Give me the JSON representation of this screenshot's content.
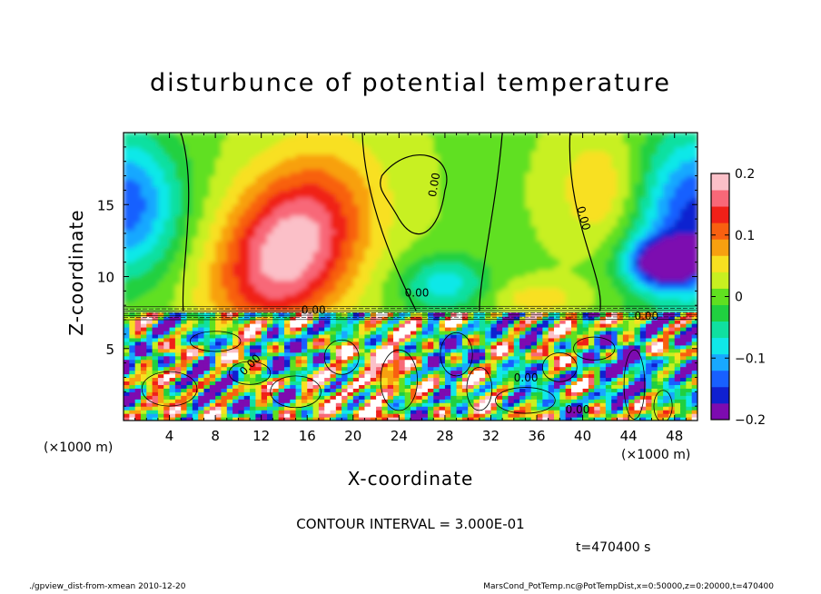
{
  "chart_data": {
    "type": "heatmap",
    "title": "disturbunce of potential temperature",
    "xlabel": "X-coordinate",
    "ylabel": "Z-coordinate",
    "x_unit_left": "(×1000 m)",
    "x_unit_right": "(×1000 m)",
    "xlim": [
      0,
      50
    ],
    "ylim": [
      0,
      20
    ],
    "xticks": [
      4,
      8,
      12,
      16,
      20,
      24,
      28,
      32,
      36,
      40,
      44,
      48
    ],
    "yticks": [
      5,
      10,
      15
    ],
    "colorbar": {
      "ticks": [
        0.2,
        0.1,
        0,
        -0.1,
        -0.2
      ],
      "tick_labels": [
        "0.2",
        "0.1",
        "0",
        "−0.1",
        "−0.2"
      ],
      "range": [
        -0.2,
        0.2
      ],
      "colors": [
        "#7d0bb0",
        "#1020d0",
        "#1860ff",
        "#18a8ff",
        "#10e8e8",
        "#10e0a0",
        "#20d040",
        "#60e020",
        "#c8f020",
        "#f8e020",
        "#f8a010",
        "#f86010",
        "#f02018",
        "#f86878",
        "#fbc0c8"
      ]
    },
    "contour_labels": [
      "0.00"
    ],
    "contour_interval_text": "CONTOUR INTERVAL = 3.000E-01"
  },
  "annotations": {
    "time": "t=470400 s",
    "footer_left": "./gpview_dist-from-xmean  2010-12-20",
    "footer_right": "MarsCond_PotTemp.nc@PotTempDist,x=0:50000,z=0:20000,t=470400"
  }
}
